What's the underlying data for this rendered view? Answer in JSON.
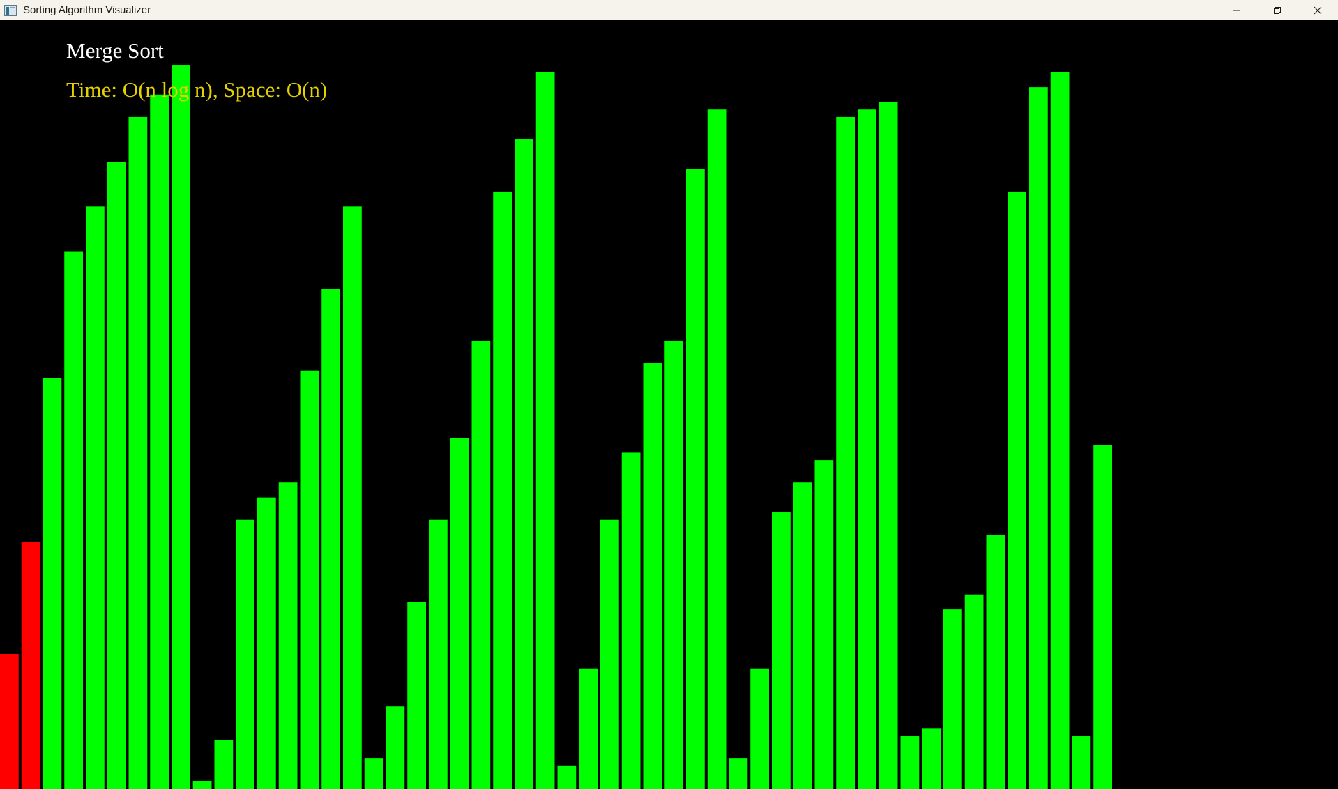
{
  "window": {
    "title": "Sorting Algorithm Visualizer",
    "icon": "app-window-icon",
    "controls": {
      "minimize": "minimize-icon",
      "restore": "restore-icon",
      "close": "close-icon"
    }
  },
  "visualizer": {
    "algorithm_name": "Merge Sort",
    "complexity": "Time: O(n log n), Space: O(n)",
    "background_color": "#000000",
    "bar_color": "#00ff00",
    "highlight_color": "#ff0000",
    "text_color_name": "#ffffff",
    "text_color_complexity": "#e4d200"
  },
  "chart_data": {
    "type": "bar",
    "values": [
      181,
      331,
      551,
      721,
      781,
      841,
      901,
      931,
      971,
      11,
      66,
      361,
      391,
      411,
      561,
      671,
      781,
      41,
      111,
      251,
      361,
      471,
      601,
      801,
      871,
      961,
      31,
      161,
      361,
      451,
      571,
      601,
      831,
      911,
      41,
      161,
      371,
      411,
      441,
      901,
      911,
      921,
      71,
      81,
      241,
      261,
      341,
      801,
      941,
      961,
      71,
      461
    ],
    "highlighted_indices": [
      0,
      1
    ],
    "ylim": [
      0,
      1000
    ]
  }
}
